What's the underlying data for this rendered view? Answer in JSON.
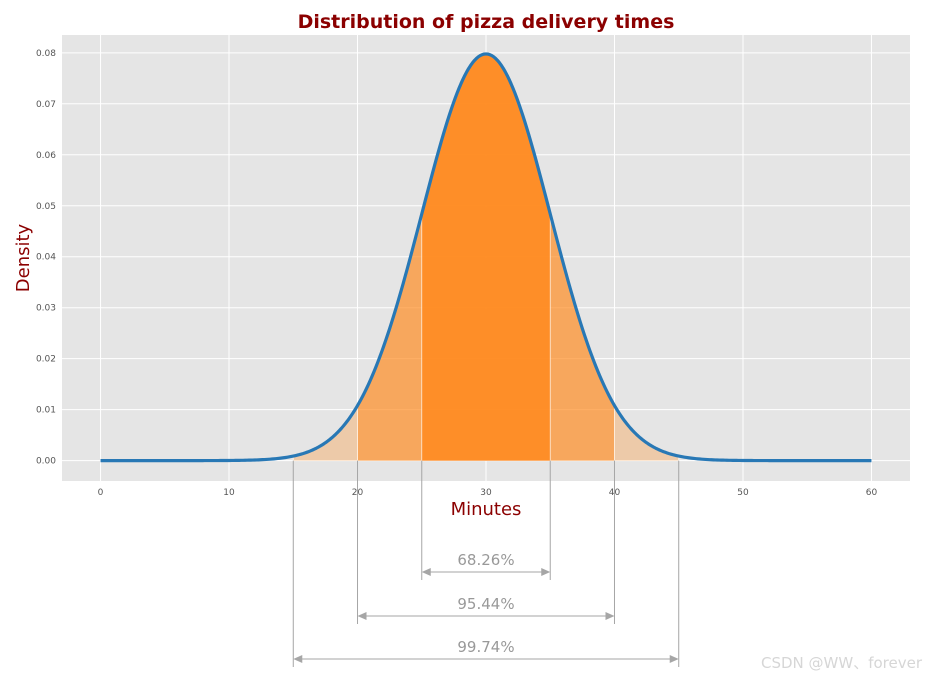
{
  "chart_data": {
    "type": "area",
    "title": "Distribution of pizza delivery times",
    "xlabel": "Minutes",
    "ylabel": "Density",
    "xlim": [
      -3,
      63
    ],
    "ylim": [
      -0.004,
      0.0835
    ],
    "x_ticks": [
      0,
      10,
      20,
      30,
      40,
      50,
      60
    ],
    "y_ticks": [
      0.0,
      0.01,
      0.02,
      0.03,
      0.04,
      0.05,
      0.06,
      0.07,
      0.08
    ],
    "grid": true,
    "distribution": {
      "mean": 30,
      "std": 5,
      "x_range": [
        0,
        60
      ]
    },
    "curve_color": "#2878b5",
    "fill_color": "#ff8a1f",
    "background_color": "#e5e5e5",
    "bands": [
      {
        "from": 25,
        "to": 35,
        "label": "68.26%",
        "opacity": 0.85
      },
      {
        "from": 20,
        "to": 40,
        "label": "95.44%",
        "opacity": 0.55
      },
      {
        "from": 15,
        "to": 45,
        "label": "99.74%",
        "opacity": 0.3
      }
    ]
  },
  "watermark": "CSDN @WW、forever"
}
